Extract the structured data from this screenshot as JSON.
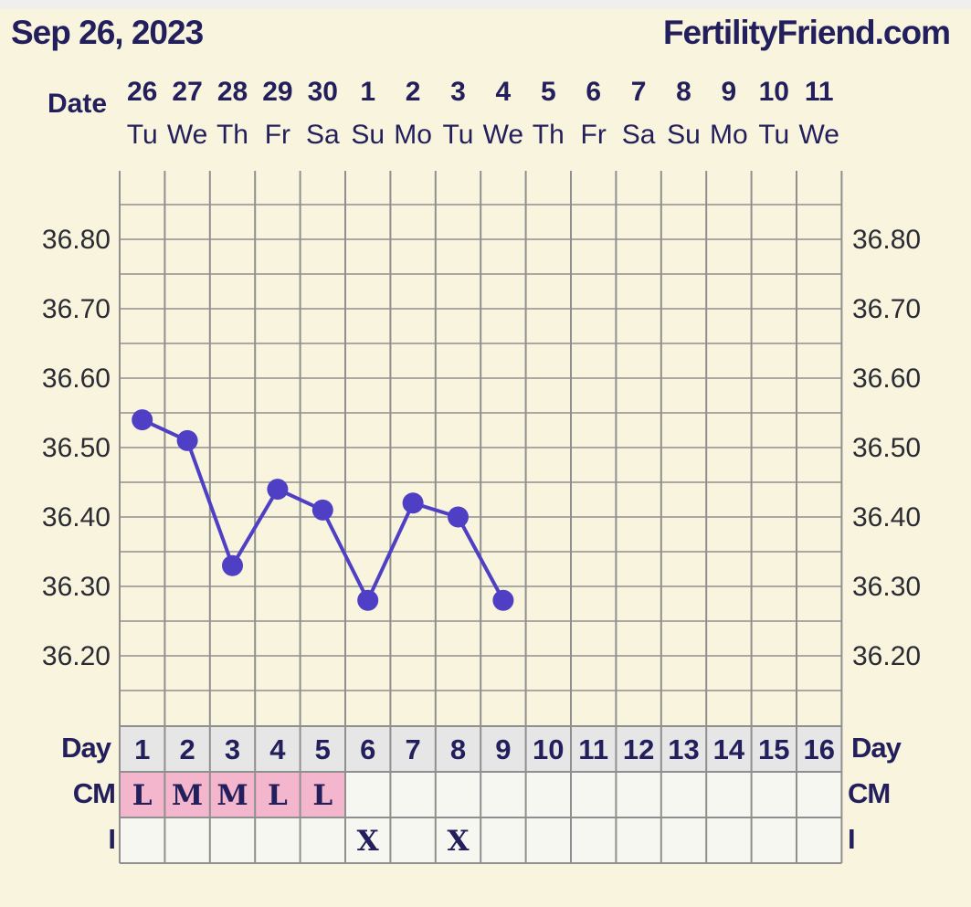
{
  "header": {
    "date": "Sep 26, 2023",
    "site": "FertilityFriend.com"
  },
  "labels": {
    "date_row": "Date",
    "day_row": "Day",
    "cm_row": "CM",
    "intercourse_row": "I"
  },
  "colors": {
    "background": "#f8f4dd",
    "plot_background": "#f8f4dd",
    "line": "#4f3fc4",
    "text": "#231f5c",
    "cm_highlight": "#f3b6cc",
    "day_row_bg": "#e6e6e6",
    "row_bg": "#f6f7f0"
  },
  "chart_data": {
    "type": "line",
    "title": "",
    "xlabel": "",
    "ylabel": "",
    "ylim": [
      36.1,
      36.9
    ],
    "yticks": [
      "36.80",
      "36.70",
      "36.60",
      "36.50",
      "36.40",
      "36.30",
      "36.20"
    ],
    "dates": [
      "26",
      "27",
      "28",
      "29",
      "30",
      "1",
      "2",
      "3",
      "4",
      "5",
      "6",
      "7",
      "8",
      "9",
      "10",
      "11"
    ],
    "weekdays": [
      "Tu",
      "We",
      "Th",
      "Fr",
      "Sa",
      "Su",
      "Mo",
      "Tu",
      "We",
      "Th",
      "Fr",
      "Sa",
      "Su",
      "Mo",
      "Tu",
      "We"
    ],
    "cycle_days": [
      "1",
      "2",
      "3",
      "4",
      "5",
      "6",
      "7",
      "8",
      "9",
      "10",
      "11",
      "12",
      "13",
      "14",
      "15",
      "16"
    ],
    "series": [
      {
        "values": [
          36.54,
          36.51,
          36.33,
          36.44,
          36.41,
          36.28,
          36.42,
          36.4,
          36.28,
          null,
          null,
          null,
          null,
          null,
          null,
          null
        ]
      }
    ],
    "cervical_mucus": [
      "L",
      "M",
      "M",
      "L",
      "L",
      "",
      "",
      "",
      "",
      "",
      "",
      "",
      "",
      "",
      "",
      ""
    ],
    "intercourse": [
      "",
      "",
      "",
      "",
      "",
      "X",
      "",
      "X",
      "",
      "",
      "",
      "",
      "",
      "",
      "",
      ""
    ],
    "grid": true
  }
}
